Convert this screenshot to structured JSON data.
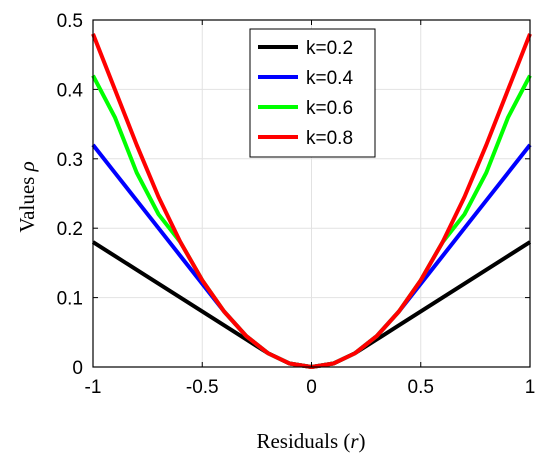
{
  "chart_data": {
    "type": "line",
    "title": "",
    "xlabel_prefix": "Residuals (",
    "xlabel_var": "r",
    "xlabel_suffix": ")",
    "ylabel_prefix": "Values ",
    "ylabel_var": "ρ",
    "xlim": [
      -1,
      1
    ],
    "ylim": [
      0,
      0.5
    ],
    "x_ticks": [
      -1,
      -0.5,
      0,
      0.5,
      1
    ],
    "x_tick_labels": [
      "-1",
      "-0.5",
      "0",
      "0.5",
      "1"
    ],
    "y_ticks": [
      0,
      0.1,
      0.2,
      0.3,
      0.4,
      0.5
    ],
    "y_tick_labels": [
      "0",
      "0.1",
      "0.2",
      "0.3",
      "0.4",
      "0.5"
    ],
    "grid": true,
    "legend_position": "top-center",
    "x": [
      -1,
      -0.9,
      -0.8,
      -0.7,
      -0.6,
      -0.5,
      -0.4,
      -0.3,
      -0.2,
      -0.1,
      0,
      0.1,
      0.2,
      0.3,
      0.4,
      0.5,
      0.6,
      0.7,
      0.8,
      0.9,
      1
    ],
    "series": [
      {
        "name": "k=0.2",
        "color": "#000000",
        "values": [
          0.18,
          0.16,
          0.14,
          0.12,
          0.1,
          0.08,
          0.06,
          0.04,
          0.02,
          0.005,
          0,
          0.005,
          0.02,
          0.04,
          0.06,
          0.08,
          0.1,
          0.12,
          0.14,
          0.16,
          0.18
        ]
      },
      {
        "name": "k=0.4",
        "color": "#0000ff",
        "values": [
          0.32,
          0.28,
          0.24,
          0.2,
          0.16,
          0.12,
          0.08,
          0.045,
          0.02,
          0.005,
          0,
          0.005,
          0.02,
          0.045,
          0.08,
          0.12,
          0.16,
          0.2,
          0.24,
          0.28,
          0.32
        ]
      },
      {
        "name": "k=0.6",
        "color": "#00ff00",
        "values": [
          0.42,
          0.36,
          0.28,
          0.22,
          0.18,
          0.125,
          0.08,
          0.045,
          0.02,
          0.005,
          0,
          0.005,
          0.02,
          0.045,
          0.08,
          0.125,
          0.18,
          0.22,
          0.28,
          0.36,
          0.42
        ]
      },
      {
        "name": "k=0.8",
        "color": "#ff0000",
        "values": [
          0.48,
          0.4,
          0.32,
          0.245,
          0.18,
          0.125,
          0.08,
          0.045,
          0.02,
          0.005,
          0,
          0.005,
          0.02,
          0.045,
          0.08,
          0.125,
          0.18,
          0.245,
          0.32,
          0.4,
          0.48
        ]
      }
    ]
  }
}
